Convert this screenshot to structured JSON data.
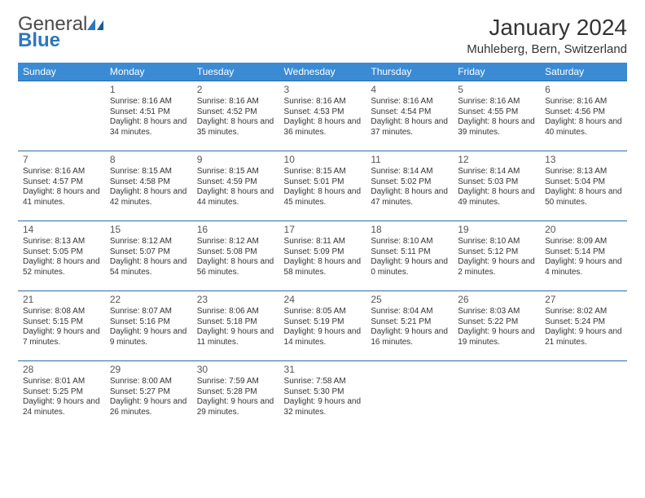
{
  "brand": {
    "name1": "General",
    "name2": "Blue"
  },
  "title": "January 2024",
  "location": "Muhleberg, Bern, Switzerland",
  "colors": {
    "header_bg": "#3b8bd4",
    "header_text": "#ffffff",
    "row_border": "#2b6aa8",
    "text": "#333333",
    "brand_blue": "#2b77c0",
    "background": "#ffffff"
  },
  "font": {
    "family": "Arial",
    "title_size": 28,
    "location_size": 15,
    "dayhdr_size": 12,
    "cell_size": 10
  },
  "days_of_week": [
    "Sunday",
    "Monday",
    "Tuesday",
    "Wednesday",
    "Thursday",
    "Friday",
    "Saturday"
  ],
  "weeks": [
    [
      null,
      {
        "n": "1",
        "sr": "8:16 AM",
        "ss": "4:51 PM",
        "dl": "8 hours and 34 minutes."
      },
      {
        "n": "2",
        "sr": "8:16 AM",
        "ss": "4:52 PM",
        "dl": "8 hours and 35 minutes."
      },
      {
        "n": "3",
        "sr": "8:16 AM",
        "ss": "4:53 PM",
        "dl": "8 hours and 36 minutes."
      },
      {
        "n": "4",
        "sr": "8:16 AM",
        "ss": "4:54 PM",
        "dl": "8 hours and 37 minutes."
      },
      {
        "n": "5",
        "sr": "8:16 AM",
        "ss": "4:55 PM",
        "dl": "8 hours and 39 minutes."
      },
      {
        "n": "6",
        "sr": "8:16 AM",
        "ss": "4:56 PM",
        "dl": "8 hours and 40 minutes."
      }
    ],
    [
      {
        "n": "7",
        "sr": "8:16 AM",
        "ss": "4:57 PM",
        "dl": "8 hours and 41 minutes."
      },
      {
        "n": "8",
        "sr": "8:15 AM",
        "ss": "4:58 PM",
        "dl": "8 hours and 42 minutes."
      },
      {
        "n": "9",
        "sr": "8:15 AM",
        "ss": "4:59 PM",
        "dl": "8 hours and 44 minutes."
      },
      {
        "n": "10",
        "sr": "8:15 AM",
        "ss": "5:01 PM",
        "dl": "8 hours and 45 minutes."
      },
      {
        "n": "11",
        "sr": "8:14 AM",
        "ss": "5:02 PM",
        "dl": "8 hours and 47 minutes."
      },
      {
        "n": "12",
        "sr": "8:14 AM",
        "ss": "5:03 PM",
        "dl": "8 hours and 49 minutes."
      },
      {
        "n": "13",
        "sr": "8:13 AM",
        "ss": "5:04 PM",
        "dl": "8 hours and 50 minutes."
      }
    ],
    [
      {
        "n": "14",
        "sr": "8:13 AM",
        "ss": "5:05 PM",
        "dl": "8 hours and 52 minutes."
      },
      {
        "n": "15",
        "sr": "8:12 AM",
        "ss": "5:07 PM",
        "dl": "8 hours and 54 minutes."
      },
      {
        "n": "16",
        "sr": "8:12 AM",
        "ss": "5:08 PM",
        "dl": "8 hours and 56 minutes."
      },
      {
        "n": "17",
        "sr": "8:11 AM",
        "ss": "5:09 PM",
        "dl": "8 hours and 58 minutes."
      },
      {
        "n": "18",
        "sr": "8:10 AM",
        "ss": "5:11 PM",
        "dl": "9 hours and 0 minutes."
      },
      {
        "n": "19",
        "sr": "8:10 AM",
        "ss": "5:12 PM",
        "dl": "9 hours and 2 minutes."
      },
      {
        "n": "20",
        "sr": "8:09 AM",
        "ss": "5:14 PM",
        "dl": "9 hours and 4 minutes."
      }
    ],
    [
      {
        "n": "21",
        "sr": "8:08 AM",
        "ss": "5:15 PM",
        "dl": "9 hours and 7 minutes."
      },
      {
        "n": "22",
        "sr": "8:07 AM",
        "ss": "5:16 PM",
        "dl": "9 hours and 9 minutes."
      },
      {
        "n": "23",
        "sr": "8:06 AM",
        "ss": "5:18 PM",
        "dl": "9 hours and 11 minutes."
      },
      {
        "n": "24",
        "sr": "8:05 AM",
        "ss": "5:19 PM",
        "dl": "9 hours and 14 minutes."
      },
      {
        "n": "25",
        "sr": "8:04 AM",
        "ss": "5:21 PM",
        "dl": "9 hours and 16 minutes."
      },
      {
        "n": "26",
        "sr": "8:03 AM",
        "ss": "5:22 PM",
        "dl": "9 hours and 19 minutes."
      },
      {
        "n": "27",
        "sr": "8:02 AM",
        "ss": "5:24 PM",
        "dl": "9 hours and 21 minutes."
      }
    ],
    [
      {
        "n": "28",
        "sr": "8:01 AM",
        "ss": "5:25 PM",
        "dl": "9 hours and 24 minutes."
      },
      {
        "n": "29",
        "sr": "8:00 AM",
        "ss": "5:27 PM",
        "dl": "9 hours and 26 minutes."
      },
      {
        "n": "30",
        "sr": "7:59 AM",
        "ss": "5:28 PM",
        "dl": "9 hours and 29 minutes."
      },
      {
        "n": "31",
        "sr": "7:58 AM",
        "ss": "5:30 PM",
        "dl": "9 hours and 32 minutes."
      },
      null,
      null,
      null
    ]
  ],
  "labels": {
    "sunrise": "Sunrise:",
    "sunset": "Sunset:",
    "daylight": "Daylight:"
  }
}
